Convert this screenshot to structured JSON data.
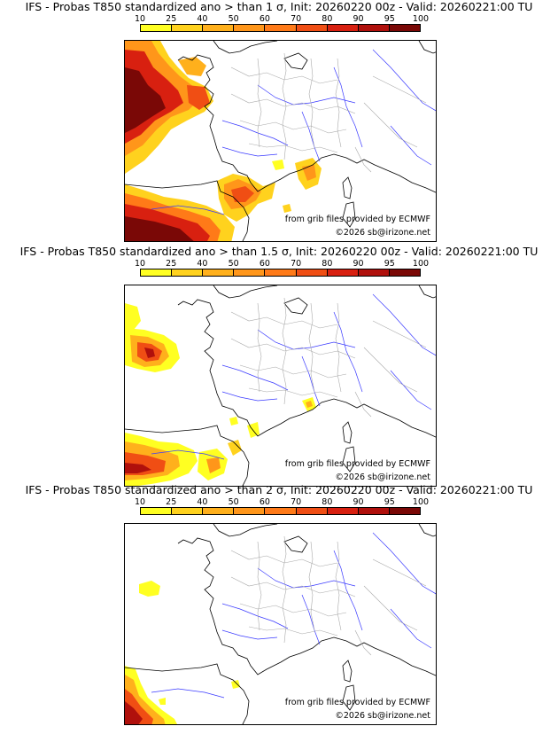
{
  "colorbar": {
    "labels": [
      "10",
      "25",
      "40",
      "50",
      "60",
      "70",
      "80",
      "90",
      "95",
      "100"
    ],
    "colors": [
      "#ffff22",
      "#ffd21e",
      "#ffb01c",
      "#ff961a",
      "#ff7a18",
      "#f04e14",
      "#d82010",
      "#b0100c",
      "#7a0806"
    ]
  },
  "panels": [
    {
      "title": "IFS - Probas T850  standardized ano > than 1 σ, Init: 20260220 00z - Valid: 20260221:00 TU",
      "credit_source": "from grib files provided by ECMWF",
      "credit_copyright": "©2026 sb@irizone.net"
    },
    {
      "title": "IFS - Probas T850  standardized ano > than 1.5 σ, Init: 20260220 00z - Valid: 20260221:00 TU",
      "credit_source": "from grib files provided by ECMWF",
      "credit_copyright": "©2026 sb@irizone.net"
    },
    {
      "title": "IFS - Probas T850  standardized ano > than 2 σ, Init: 20260220 00z - Valid: 20260221:00 TU",
      "credit_source": "from grib files provided by ECMWF",
      "credit_copyright": "©2026 sb@irizone.net"
    }
  ]
}
